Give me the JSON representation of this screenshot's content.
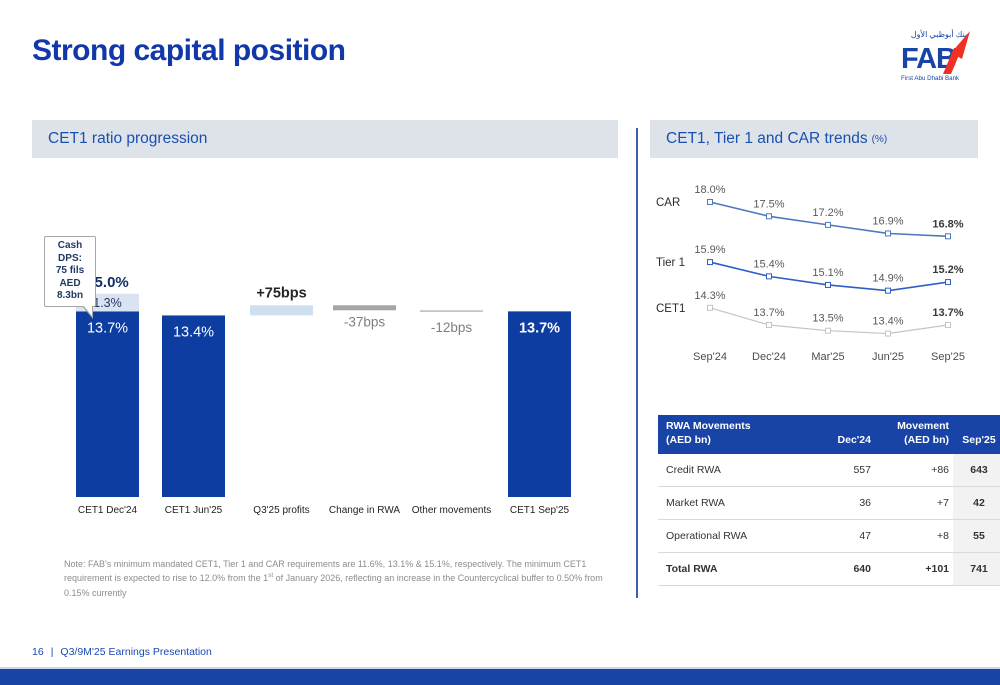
{
  "slide": {
    "title": "Strong capital position",
    "footer": {
      "page": "16",
      "separator": "|",
      "label": "Q3/9M'25 Earnings Presentation"
    },
    "logo": {
      "arabic": "بنك أبوظبي الأول",
      "name": "FAB",
      "subtitle": "First Abu Dhabi Bank",
      "brand_blue": "#1843a7",
      "brand_red": "#ee3124"
    }
  },
  "left_panel": {
    "header": "CET1 ratio progression",
    "note": {
      "part1": "Note: FAB's minimum mandated CET1, Tier 1 and CAR requirements are 11.6%, 13.1% & 15.1%, respectively. The minimum CET1 requirement is expected to rise to 12.0% from the 1",
      "sup": "st",
      "part2": " of January 2026, reflecting an increase in the Countercyclical buffer to 0.50% from 0.15% currently"
    }
  },
  "right_panel": {
    "header": "CET1, Tier 1 and CAR trends",
    "header_unit": "(%)"
  },
  "chart_data": [
    {
      "type": "bar",
      "subtype": "waterfall",
      "title": "CET1 ratio progression",
      "unit": "%",
      "ylim": [
        0,
        16
      ],
      "categories": [
        "CET1 Dec'24",
        "CET1 Jun'25",
        "Q3'25 profits",
        "Change in RWA",
        "Other movements",
        "CET1 Sep'25"
      ],
      "bars": [
        {
          "category": "CET1 Dec'24",
          "kind": "total",
          "total_label": "15.0%",
          "segments": [
            {
              "value": 13.7,
              "label": "13.7%",
              "style": "blue",
              "bold": false
            },
            {
              "value": 1.3,
              "label": "1.3%",
              "style": "light"
            }
          ]
        },
        {
          "category": "CET1 Jun'25",
          "kind": "total",
          "segments": [
            {
              "value": 13.4,
              "label": "13.4%",
              "style": "blue",
              "bold": false
            }
          ]
        },
        {
          "category": "Q3'25 profits",
          "kind": "delta",
          "value": 0.75,
          "label": "+75bps",
          "style": "profit",
          "label_position": "above"
        },
        {
          "category": "Change in RWA",
          "kind": "delta",
          "value": -0.37,
          "label": "-37bps",
          "style": "gray",
          "label_position": "below"
        },
        {
          "category": "Other movements",
          "kind": "delta",
          "value": -0.12,
          "label": "-12bps",
          "style": "thin",
          "label_position": "below"
        },
        {
          "category": "CET1 Sep'25",
          "kind": "total",
          "segments": [
            {
              "value": 13.7,
              "label": "13.7%",
              "style": "blue",
              "bold": true
            }
          ]
        }
      ],
      "colors": {
        "blue": "#0d3da1",
        "light": "#dae4f1",
        "profit": "#cfdfee",
        "gray": "#a6a6a6",
        "thin": "#bfbfbf"
      },
      "callout": {
        "lines": [
          "Cash DPS:",
          "75 fils",
          "AED 8.3bn"
        ]
      }
    },
    {
      "type": "line",
      "title": "CET1, Tier 1 and CAR trends (%)",
      "x": [
        "Sep'24",
        "Dec'24",
        "Mar'25",
        "Jun'25",
        "Sep'25"
      ],
      "series": [
        {
          "name": "CAR",
          "color": "#4e79bd",
          "values": [
            18.0,
            17.5,
            17.2,
            16.9,
            16.8
          ]
        },
        {
          "name": "Tier 1",
          "color": "#2d5fc8",
          "values": [
            15.9,
            15.4,
            15.1,
            14.9,
            15.2
          ]
        },
        {
          "name": "CET1",
          "color": "#c2c4c6",
          "values": [
            14.3,
            13.7,
            13.5,
            13.4,
            13.7
          ]
        }
      ],
      "legend_position": "left-of-lines",
      "grid": false,
      "last_point_label_bold": true
    },
    {
      "type": "table",
      "header": [
        [
          "RWA Movements",
          "(AED bn)"
        ],
        [
          "Dec'24"
        ],
        [
          "Movement",
          "(AED bn)"
        ],
        [
          "Sep'25"
        ]
      ],
      "rows": [
        {
          "name": "Credit RWA",
          "dec24": "557",
          "movement": "+86",
          "sep25": "643",
          "bold": false
        },
        {
          "name": "Market RWA",
          "dec24": "36",
          "movement": "+7",
          "sep25": "42",
          "bold": false
        },
        {
          "name": "Operational RWA",
          "dec24": "47",
          "movement": "+8",
          "sep25": "55",
          "bold": false
        },
        {
          "name": "Total RWA",
          "dec24": "640",
          "movement": "+101",
          "sep25": "741",
          "bold": true
        }
      ]
    }
  ]
}
